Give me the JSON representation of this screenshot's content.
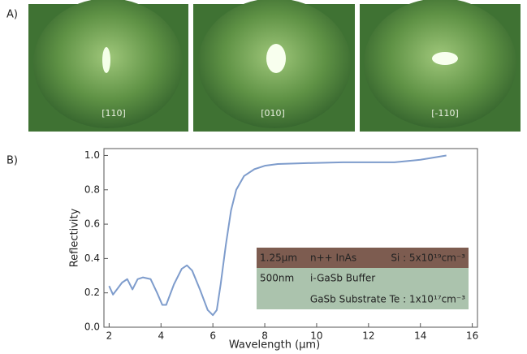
{
  "panels": {
    "a": "A)",
    "b": "B)"
  },
  "images": [
    "[110]",
    "[010]",
    "[-110]"
  ],
  "chart_data": {
    "type": "line",
    "x_label": "Wavelength (μm)",
    "y_label": "Reflectivity",
    "x": [
      2.0,
      2.15,
      2.3,
      2.5,
      2.7,
      2.9,
      3.1,
      3.3,
      3.6,
      3.85,
      4.05,
      4.2,
      4.5,
      4.8,
      5.0,
      5.2,
      5.5,
      5.8,
      6.0,
      6.15,
      6.3,
      6.5,
      6.7,
      6.9,
      7.2,
      7.6,
      8.0,
      8.5,
      9.5,
      11,
      13,
      14,
      15
    ],
    "series": [
      {
        "name": "Reflectivity",
        "color": "#7e9ccc",
        "values": [
          0.24,
          0.19,
          0.22,
          0.26,
          0.28,
          0.22,
          0.28,
          0.29,
          0.28,
          0.2,
          0.13,
          0.13,
          0.25,
          0.34,
          0.36,
          0.33,
          0.22,
          0.1,
          0.07,
          0.1,
          0.25,
          0.48,
          0.68,
          0.8,
          0.88,
          0.92,
          0.94,
          0.95,
          0.955,
          0.96,
          0.96,
          0.975,
          1.0
        ]
      }
    ],
    "xlim": [
      1.8,
      16.2
    ],
    "ylim": [
      0,
      1.04
    ],
    "xticks": [
      2,
      4,
      6,
      8,
      10,
      12,
      14,
      16
    ],
    "yticks": [
      {
        "value": 0,
        "label": "0.0"
      },
      0.2,
      0.4,
      0.6,
      0.8,
      {
        "value": 1,
        "label": "1.0"
      }
    ],
    "inset": {
      "layers": [
        {
          "thickness": "1.25μm",
          "name": "n++ InAs",
          "doping": "Si : 5x10¹⁹cm⁻³",
          "color": "#7d5c50"
        },
        {
          "thickness": "500nm",
          "name": "i-GaSb Buffer",
          "color": "#abc3ad"
        }
      ],
      "substrate": "GaSb Substrate Te : 1x10¹⁷cm⁻³"
    }
  }
}
